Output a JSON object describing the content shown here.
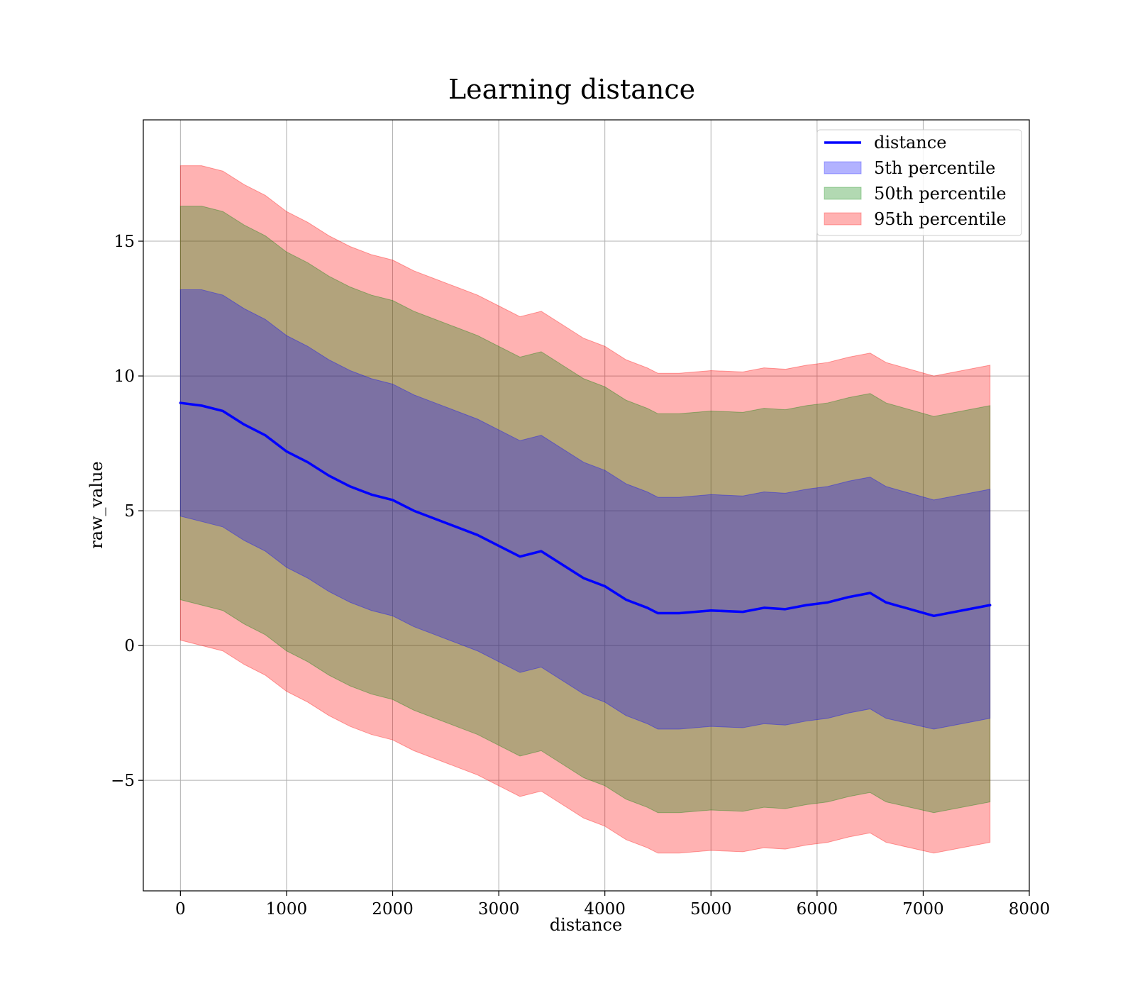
{
  "chart_data": {
    "type": "area",
    "title": "Learning distance",
    "xlabel": "distance",
    "ylabel": "raw_value",
    "xlim": [
      -350,
      8000
    ],
    "ylim": [
      -9.1,
      19.5
    ],
    "xticks": [
      0,
      1000,
      2000,
      3000,
      4000,
      5000,
      6000,
      7000,
      8000
    ],
    "yticks": [
      -5,
      0,
      5,
      10,
      15
    ],
    "grid": true,
    "legend_position": "top-right",
    "legend": [
      "distance",
      "5th percentile",
      "50th percentile",
      "95th percentile"
    ],
    "colors": {
      "line": "#0000ff",
      "band_5th": "#0000ff",
      "band_50th": "#008000",
      "band_95th": "#ff0000"
    },
    "x": [
      0,
      200,
      400,
      600,
      800,
      1000,
      1200,
      1400,
      1600,
      1800,
      2000,
      2200,
      2400,
      2600,
      2800,
      3000,
      3200,
      3400,
      3600,
      3800,
      4000,
      4200,
      4400,
      4500,
      4700,
      5000,
      5300,
      5500,
      5700,
      5900,
      6100,
      6300,
      6500,
      6650,
      7100,
      7630
    ],
    "series": [
      {
        "name": "distance",
        "values": [
          9.0,
          8.9,
          8.7,
          8.2,
          7.8,
          7.2,
          6.8,
          6.3,
          5.9,
          5.6,
          5.4,
          5.0,
          4.7,
          4.4,
          4.1,
          3.7,
          3.3,
          3.5,
          3.0,
          2.5,
          2.2,
          1.7,
          1.4,
          1.2,
          1.2,
          1.3,
          1.25,
          1.4,
          1.35,
          1.5,
          1.6,
          1.8,
          1.95,
          1.6,
          1.1,
          1.5
        ]
      },
      {
        "name": "5th percentile",
        "lower": [
          4.8,
          4.6,
          4.4,
          3.9,
          3.5,
          2.9,
          2.5,
          2.0,
          1.6,
          1.3,
          1.1,
          0.7,
          0.4,
          0.1,
          -0.2,
          -0.6,
          -1.0,
          -0.8,
          -1.3,
          -1.8,
          -2.1,
          -2.6,
          -2.9,
          -3.1,
          -3.1,
          -3.0,
          -3.05,
          -2.9,
          -2.95,
          -2.8,
          -2.7,
          -2.5,
          -2.35,
          -2.7,
          -3.1,
          -2.7
        ],
        "upper": [
          13.2,
          13.2,
          13.0,
          12.5,
          12.1,
          11.5,
          11.1,
          10.6,
          10.2,
          9.9,
          9.7,
          9.3,
          9.0,
          8.7,
          8.4,
          8.0,
          7.6,
          7.8,
          7.3,
          6.8,
          6.5,
          6.0,
          5.7,
          5.5,
          5.5,
          5.6,
          5.55,
          5.7,
          5.65,
          5.8,
          5.9,
          6.1,
          6.25,
          5.9,
          5.4,
          5.8
        ]
      },
      {
        "name": "50th percentile",
        "lower": [
          1.7,
          1.5,
          1.3,
          0.8,
          0.4,
          -0.2,
          -0.6,
          -1.1,
          -1.5,
          -1.8,
          -2.0,
          -2.4,
          -2.7,
          -3.0,
          -3.3,
          -3.7,
          -4.1,
          -3.9,
          -4.4,
          -4.9,
          -5.2,
          -5.7,
          -6.0,
          -6.2,
          -6.2,
          -6.1,
          -6.15,
          -6.0,
          -6.05,
          -5.9,
          -5.8,
          -5.6,
          -5.45,
          -5.8,
          -6.2,
          -5.8
        ],
        "upper": [
          16.3,
          16.3,
          16.1,
          15.6,
          15.2,
          14.6,
          14.2,
          13.7,
          13.3,
          13.0,
          12.8,
          12.4,
          12.1,
          11.8,
          11.5,
          11.1,
          10.7,
          10.9,
          10.4,
          9.9,
          9.6,
          9.1,
          8.8,
          8.6,
          8.6,
          8.7,
          8.65,
          8.8,
          8.75,
          8.9,
          9.0,
          9.2,
          9.35,
          9.0,
          8.5,
          8.9
        ]
      },
      {
        "name": "95th percentile",
        "lower": [
          0.2,
          0.0,
          -0.2,
          -0.7,
          -1.1,
          -1.7,
          -2.1,
          -2.6,
          -3.0,
          -3.3,
          -3.5,
          -3.9,
          -4.2,
          -4.5,
          -4.8,
          -5.2,
          -5.6,
          -5.4,
          -5.9,
          -6.4,
          -6.7,
          -7.2,
          -7.5,
          -7.7,
          -7.7,
          -7.6,
          -7.65,
          -7.5,
          -7.55,
          -7.4,
          -7.3,
          -7.1,
          -6.95,
          -7.3,
          -7.7,
          -7.3
        ],
        "upper": [
          17.8,
          17.8,
          17.6,
          17.1,
          16.7,
          16.1,
          15.7,
          15.2,
          14.8,
          14.5,
          14.3,
          13.9,
          13.6,
          13.3,
          13.0,
          12.6,
          12.2,
          12.4,
          11.9,
          11.4,
          11.1,
          10.6,
          10.3,
          10.1,
          10.1,
          10.2,
          10.15,
          10.3,
          10.25,
          10.4,
          10.5,
          10.7,
          10.85,
          10.5,
          10.0,
          10.4
        ]
      }
    ]
  }
}
